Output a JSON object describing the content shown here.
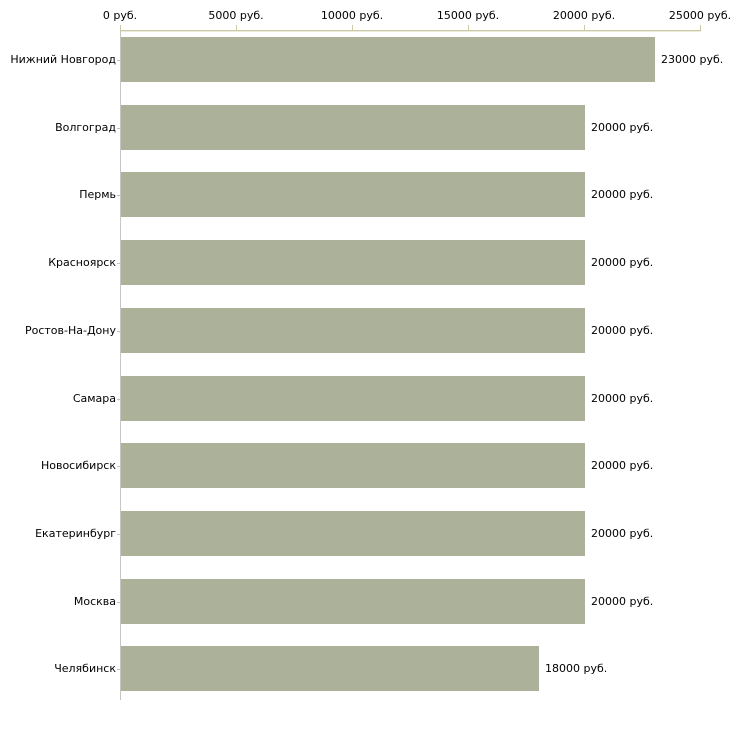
{
  "chart_data": {
    "type": "bar",
    "orientation": "horizontal",
    "title": "",
    "categories": [
      "Нижний Новгород",
      "Волгоград",
      "Пермь",
      "Красноярск",
      "Ростов-На-Дону",
      "Самара",
      "Новосибирск",
      "Екатеринбург",
      "Москва",
      "Челябинск"
    ],
    "values": [
      23000,
      20000,
      20000,
      20000,
      20000,
      20000,
      20000,
      20000,
      20000,
      18000
    ],
    "value_labels": [
      "23000 руб.",
      "20000 руб.",
      "20000 руб.",
      "20000 руб.",
      "20000 руб.",
      "20000 руб.",
      "20000 руб.",
      "20000 руб.",
      "20000 руб.",
      "18000 руб."
    ],
    "unit": "руб.",
    "xlim": [
      0,
      25000
    ],
    "x_axis_ticks": [
      {
        "value": 0,
        "label": "0 руб."
      },
      {
        "value": 5000,
        "label": "5000 руб."
      },
      {
        "value": 10000,
        "label": "10000 руб."
      },
      {
        "value": 15000,
        "label": "15000 руб."
      },
      {
        "value": 20000,
        "label": "20000 руб."
      },
      {
        "value": 25000,
        "label": "25000 руб."
      }
    ],
    "legend": null,
    "grid": false,
    "colors": {
      "bar": "#abb299",
      "value_axis_line": "#ccc9a3",
      "category_axis_line": "#c5c5c5",
      "category_tick": "#c9c6a4",
      "text": "#000000",
      "background": "#ffffff"
    }
  }
}
